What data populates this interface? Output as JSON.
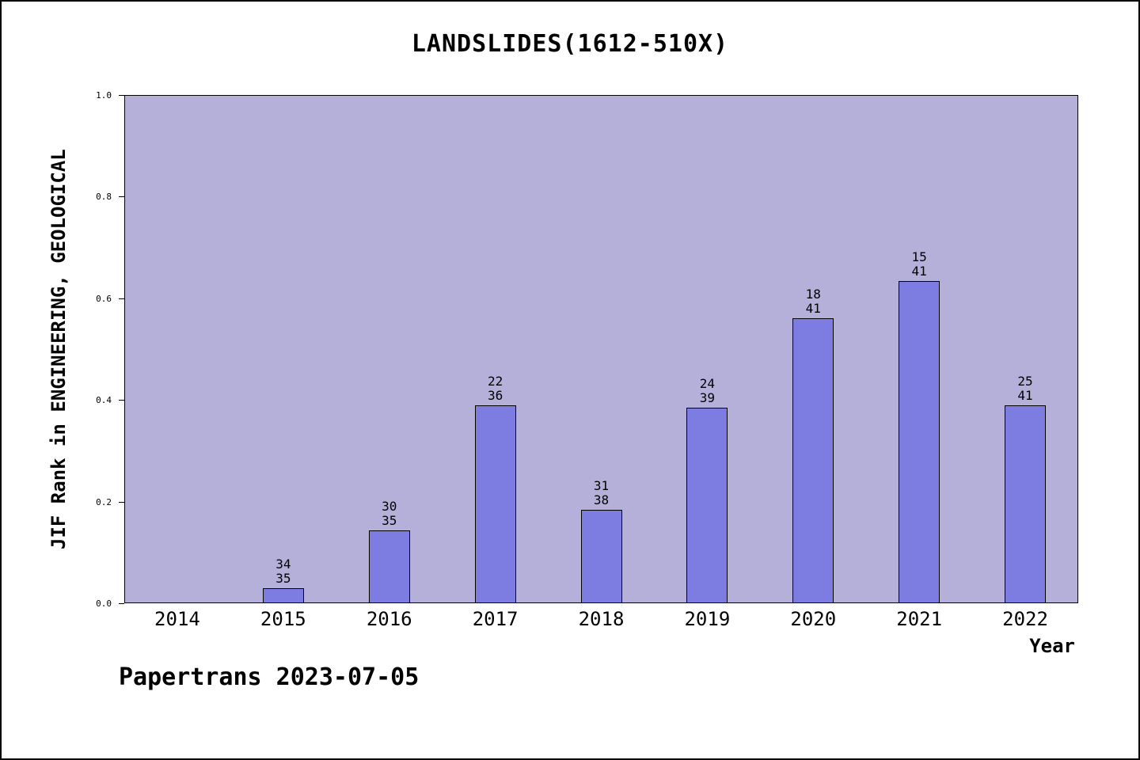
{
  "chart_data": {
    "type": "bar",
    "title": "LANDSLIDES(1612-510X)",
    "xlabel": "Year",
    "ylabel": "JIF Rank in ENGINEERING, GEOLOGICAL",
    "ylim": [
      0.0,
      1.0
    ],
    "yticks": [
      "0.0",
      "0.2",
      "0.4",
      "0.6",
      "0.8",
      "1.0"
    ],
    "grid": false,
    "legend_position": "none",
    "categories": [
      "2014",
      "2015",
      "2016",
      "2017",
      "2018",
      "2019",
      "2020",
      "2021",
      "2022"
    ],
    "bars": [
      {
        "year": "2014",
        "rank": null,
        "total": null,
        "value": null
      },
      {
        "year": "2015",
        "rank": "34",
        "total": "35",
        "value": 0.029
      },
      {
        "year": "2016",
        "rank": "30",
        "total": "35",
        "value": 0.143
      },
      {
        "year": "2017",
        "rank": "22",
        "total": "36",
        "value": 0.389
      },
      {
        "year": "2018",
        "rank": "31",
        "total": "38",
        "value": 0.184
      },
      {
        "year": "2019",
        "rank": "24",
        "total": "39",
        "value": 0.385
      },
      {
        "year": "2020",
        "rank": "18",
        "total": "41",
        "value": 0.561
      },
      {
        "year": "2021",
        "rank": "15",
        "total": "41",
        "value": 0.634
      },
      {
        "year": "2022",
        "rank": "25",
        "total": "41",
        "value": 0.39
      }
    ],
    "bar_color": "#7d7de1",
    "plot_bg": "#b4b0da"
  },
  "footer": {
    "text": "Papertrans 2023-07-05"
  }
}
